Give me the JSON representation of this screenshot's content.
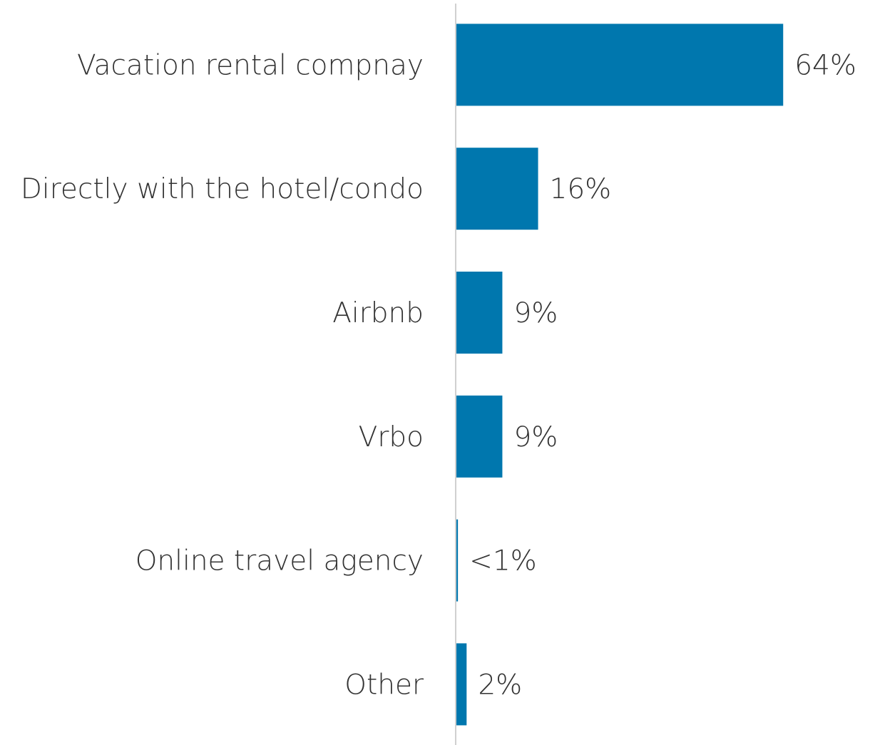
{
  "chart_data": {
    "type": "bar",
    "orientation": "horizontal",
    "categories": [
      "Vacation rental compnay",
      "Directly with the hotel/condo",
      "Airbnb",
      "Vrbo",
      "Online travel agency",
      "Other"
    ],
    "values": [
      64,
      16,
      9,
      9,
      0.3,
      2
    ],
    "value_labels": [
      "64%",
      "16%",
      "9%",
      "9%",
      "<1%",
      "2%"
    ],
    "color": "#0077ae"
  }
}
